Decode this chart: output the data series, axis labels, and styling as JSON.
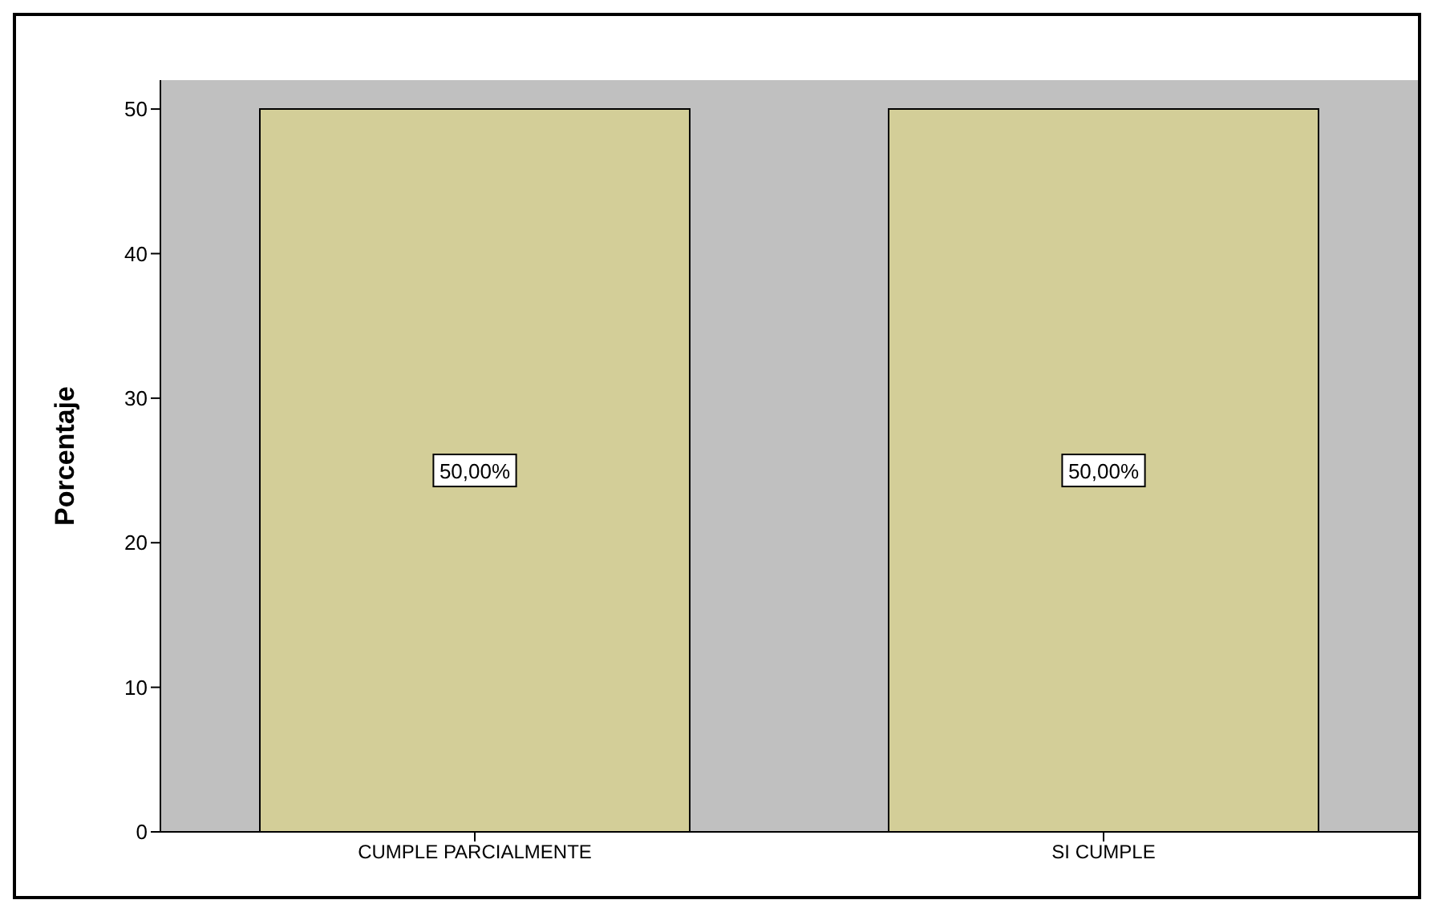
{
  "chart_data": {
    "type": "bar",
    "ylabel": "Porcentaje",
    "categories": [
      "CUMPLE PARCIALMENTE",
      "SI CUMPLE"
    ],
    "values": [
      50,
      50
    ],
    "value_labels": [
      "50,00%",
      "50,00%"
    ],
    "color": "#d3ce98",
    "ylim": [
      0,
      52
    ],
    "yticks": [
      0,
      10,
      20,
      30,
      40,
      50
    ],
    "grid": false,
    "legend": false
  }
}
